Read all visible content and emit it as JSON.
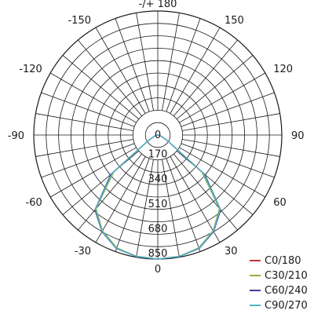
{
  "chart_data": {
    "type": "polar",
    "angle_unit": "degrees",
    "angle_labels": [
      {
        "angle": 180,
        "text": "-/+ 180"
      },
      {
        "angle": -150,
        "text": "-150"
      },
      {
        "angle": 150,
        "text": "150"
      },
      {
        "angle": -120,
        "text": "-120"
      },
      {
        "angle": 120,
        "text": "120"
      },
      {
        "angle": -90,
        "text": "-90"
      },
      {
        "angle": 90,
        "text": "90"
      },
      {
        "angle": -60,
        "text": "-60"
      },
      {
        "angle": 60,
        "text": "60"
      },
      {
        "angle": -30,
        "text": "-30"
      },
      {
        "angle": 30,
        "text": "30"
      },
      {
        "angle": 0,
        "text": "0"
      }
    ],
    "radial_axis": {
      "max": 850,
      "ticks": [
        0,
        170,
        340,
        510,
        680,
        850
      ],
      "tick_labels": [
        "0",
        "170",
        "340",
        "510",
        "680",
        "850"
      ]
    },
    "grid": true,
    "legend_position": "bottom-right",
    "angles": [
      -90,
      -80,
      -70,
      -60,
      -50,
      -40,
      -30,
      -20,
      -10,
      0,
      10,
      20,
      30,
      40,
      50,
      60,
      70,
      80,
      90
    ],
    "series": [
      {
        "name": "C0/180",
        "color": "#c0392b",
        "values": [
          0,
          10,
          25,
          70,
          400,
          660,
          760,
          825,
          845,
          850,
          845,
          825,
          760,
          660,
          400,
          70,
          25,
          10,
          0
        ]
      },
      {
        "name": "C30/210",
        "color": "#8db33a",
        "values": [
          0,
          10,
          25,
          70,
          395,
          658,
          758,
          822,
          844,
          850,
          844,
          822,
          758,
          658,
          395,
          70,
          25,
          10,
          0
        ]
      },
      {
        "name": "C60/240",
        "color": "#3a3f8f",
        "values": [
          0,
          10,
          25,
          75,
          420,
          670,
          765,
          828,
          846,
          850,
          846,
          828,
          765,
          670,
          420,
          75,
          25,
          10,
          0
        ]
      },
      {
        "name": "C90/270",
        "color": "#4fb3c9",
        "values": [
          0,
          10,
          25,
          72,
          410,
          665,
          762,
          826,
          845,
          850,
          845,
          826,
          762,
          665,
          410,
          72,
          25,
          10,
          0
        ]
      }
    ]
  }
}
